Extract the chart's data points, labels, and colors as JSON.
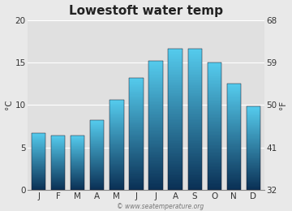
{
  "title": "Lowestoft water temp",
  "months": [
    "J",
    "F",
    "M",
    "A",
    "M",
    "J",
    "J",
    "A",
    "S",
    "O",
    "N",
    "D"
  ],
  "values_c": [
    6.7,
    6.4,
    6.4,
    8.2,
    10.6,
    13.2,
    15.2,
    16.6,
    16.6,
    15.0,
    12.5,
    9.8
  ],
  "ylabel_left": "°C",
  "ylabel_right": "°F",
  "ylim_c": [
    0,
    20
  ],
  "yticks_c": [
    0,
    5,
    10,
    15,
    20
  ],
  "yticks_f": [
    32,
    41,
    50,
    59,
    68
  ],
  "bar_color_top": "#55ccee",
  "bar_color_bottom": "#0a3055",
  "bg_color": "#e9e9e9",
  "plot_bg_color": "#e0e0e0",
  "grid_color": "#ffffff",
  "watermark": "© www.seatemperature.org",
  "title_fontsize": 11,
  "axis_fontsize": 7.5,
  "tick_fontsize": 7.5,
  "watermark_fontsize": 5.5
}
